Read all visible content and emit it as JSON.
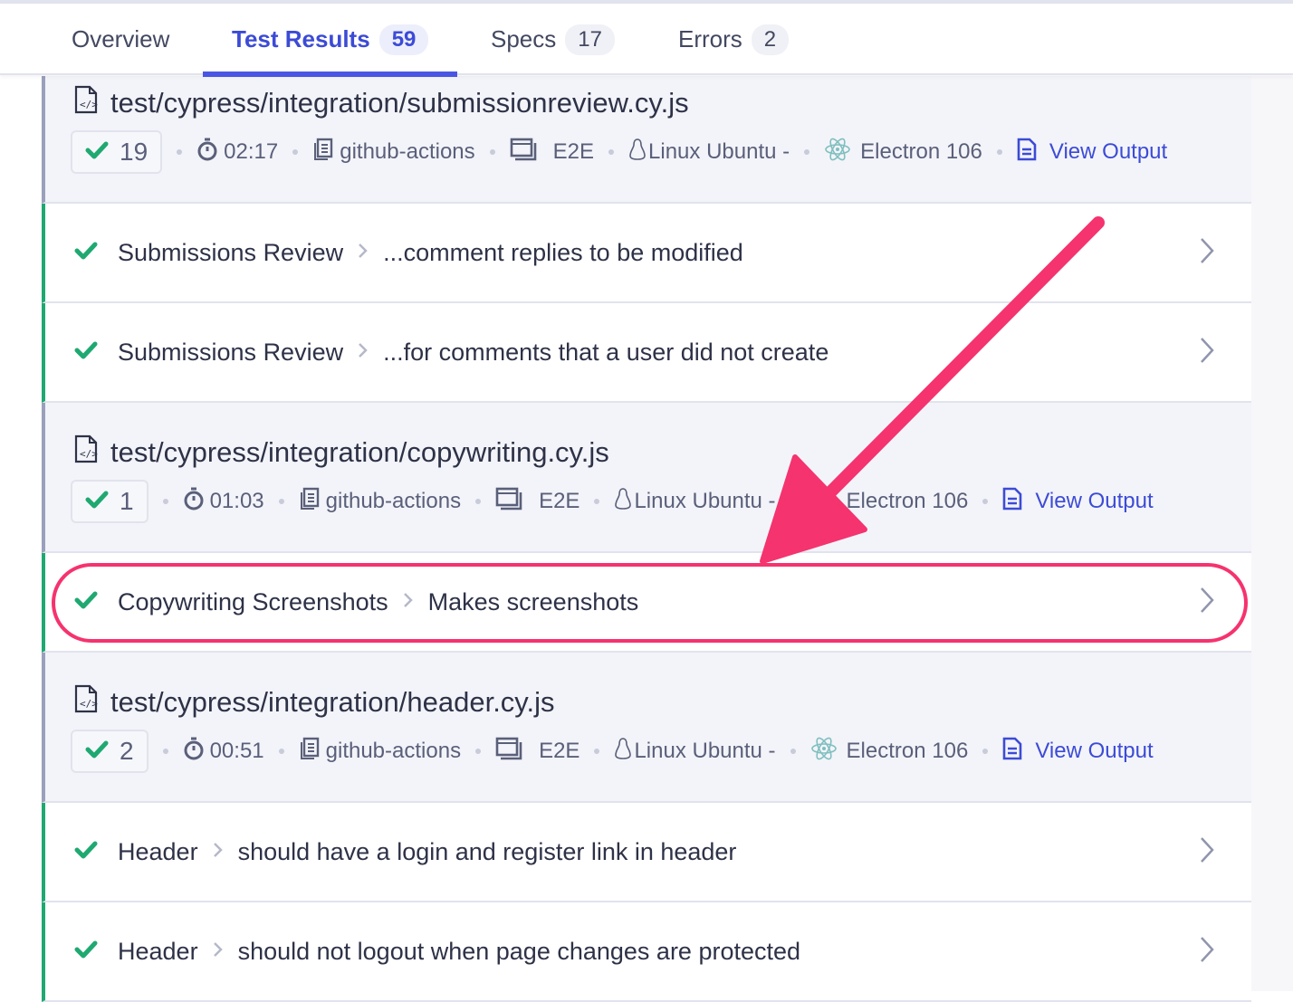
{
  "tabs": [
    {
      "label": "Overview",
      "count": null
    },
    {
      "label": "Test Results",
      "count": "59",
      "active": true
    },
    {
      "label": "Specs",
      "count": "17"
    },
    {
      "label": "Errors",
      "count": "2"
    }
  ],
  "specs": [
    {
      "path": "test/cypress/integration/submissionreview.cy.js",
      "passed": "19",
      "duration": "02:17",
      "group": "github-actions",
      "testing_type": "E2E",
      "os": "Linux Ubuntu -",
      "browser": "Electron 106",
      "view_output": "View Output",
      "tests": [
        {
          "suite": "Submissions Review",
          "title": "...comment replies to be modified"
        },
        {
          "suite": "Submissions Review",
          "title": "...for comments that a user did not create"
        }
      ]
    },
    {
      "path": "test/cypress/integration/copywriting.cy.js",
      "passed": "1",
      "duration": "01:03",
      "group": "github-actions",
      "testing_type": "E2E",
      "os": "Linux Ubuntu -",
      "browser": "Electron 106",
      "view_output": "View Output",
      "tests": [
        {
          "suite": "Copywriting Screenshots",
          "title": "Makes screenshots",
          "highlighted": true
        }
      ]
    },
    {
      "path": "test/cypress/integration/header.cy.js",
      "passed": "2",
      "duration": "00:51",
      "group": "github-actions",
      "testing_type": "E2E",
      "os": "Linux Ubuntu -",
      "browser": "Electron 106",
      "view_output": "View Output",
      "tests": [
        {
          "suite": "Header",
          "title": "should have a login and register link in header"
        },
        {
          "suite": "Header",
          "title": "should not logout when page changes are protected"
        }
      ]
    }
  ],
  "colors": {
    "accent": "#3c4bd6",
    "pass": "#1fa971",
    "annotation": "#f5336e"
  }
}
